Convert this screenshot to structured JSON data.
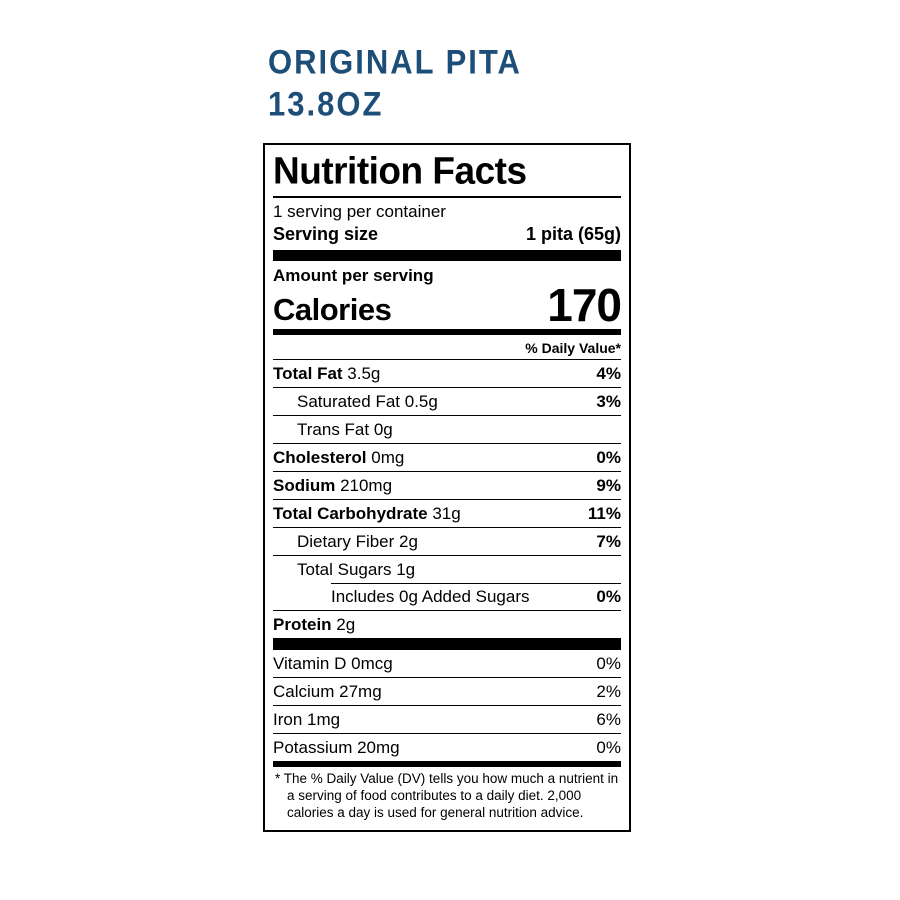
{
  "product": {
    "name": "ORIGINAL PITA",
    "size": "13.8OZ",
    "accent_color": "#1d4e78"
  },
  "label": {
    "title": "Nutrition Facts",
    "servings_per_container": "1 serving per container",
    "serving_size_label": "Serving size",
    "serving_size_value": "1 pita (65g)",
    "amount_per_serving": "Amount per serving",
    "calories_label": "Calories",
    "calories_value": "170",
    "daily_value_header": "% Daily Value*",
    "nutrient_rows": [
      {
        "name": "Total Fat",
        "amount": "3.5g",
        "dv": "4%",
        "bold": true,
        "indent": 0
      },
      {
        "name": "Saturated Fat",
        "amount": "0.5g",
        "dv": "3%",
        "bold": false,
        "indent": 1
      },
      {
        "name": "Trans Fat",
        "amount": "0g",
        "dv": "",
        "bold": false,
        "indent": 1
      },
      {
        "name": "Cholesterol",
        "amount": "0mg",
        "dv": "0%",
        "bold": true,
        "indent": 0
      },
      {
        "name": "Sodium",
        "amount": "210mg",
        "dv": "9%",
        "bold": true,
        "indent": 0
      },
      {
        "name": "Total Carbohydrate",
        "amount": "31g",
        "dv": "11%",
        "bold": true,
        "indent": 0
      },
      {
        "name": "Dietary Fiber",
        "amount": "2g",
        "dv": "7%",
        "bold": false,
        "indent": 1
      },
      {
        "name": "Total Sugars",
        "amount": "1g",
        "dv": "",
        "bold": false,
        "indent": 1
      },
      {
        "name": "Includes 0g Added Sugars",
        "amount": "",
        "dv": "0%",
        "bold": false,
        "indent": 2,
        "sep_indent": true
      },
      {
        "name": "Protein",
        "amount": "2g",
        "dv": "",
        "bold": true,
        "indent": 0
      }
    ],
    "vitamin_rows": [
      {
        "name": "Vitamin D",
        "amount": "0mcg",
        "dv": "0%"
      },
      {
        "name": "Calcium",
        "amount": "27mg",
        "dv": "2%"
      },
      {
        "name": "Iron",
        "amount": "1mg",
        "dv": "6%"
      },
      {
        "name": "Potassium",
        "amount": "20mg",
        "dv": "0%"
      }
    ],
    "footnote": "* The % Daily Value (DV) tells you how much a nutrient in a serving of food contributes to a daily diet. 2,000 calories a day is used for general nutrition advice."
  }
}
